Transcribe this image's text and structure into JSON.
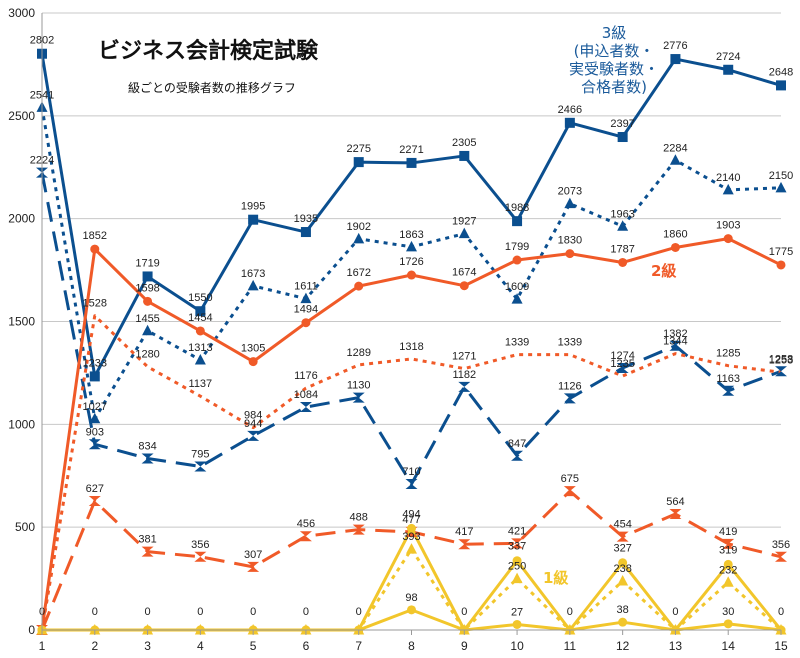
{
  "chart_data": {
    "type": "line",
    "title": "ビジネス会計検定試験",
    "subtitle": "級ごとの受験者数の推移グラフ",
    "x": [
      1,
      2,
      3,
      4,
      5,
      6,
      7,
      8,
      9,
      10,
      11,
      12,
      13,
      14,
      15
    ],
    "xlabel": "",
    "ylabel": "",
    "ylim": [
      0,
      3000
    ],
    "yticks": [
      0,
      500,
      1000,
      1500,
      2000,
      2500,
      3000
    ],
    "grid": "horizontal",
    "annotations": {
      "grade3": [
        "3級",
        "(申込者数・",
        "実受験者数・",
        "合格者数)"
      ],
      "grade2": "2級",
      "grade1": "1級"
    },
    "colors": {
      "blue": "#0b4f8f",
      "orange": "#f05a28",
      "yellow": "#f2c62b"
    },
    "series": [
      {
        "name": "3級 申込者数",
        "values": [
          2802,
          1233,
          1719,
          1550,
          1995,
          1935,
          2275,
          2271,
          2305,
          1988,
          2466,
          2397,
          2776,
          2724,
          2648
        ]
      },
      {
        "name": "3級 実受験者数",
        "values": [
          2541,
          1027,
          1455,
          1313,
          1673,
          1611,
          1902,
          1863,
          1927,
          1609,
          2073,
          1963,
          2284,
          2140,
          2150
        ]
      },
      {
        "name": "3級 合格者数",
        "values": [
          2224,
          903,
          834,
          795,
          944,
          1084,
          1130,
          710,
          1182,
          847,
          1126,
          1274,
          1382,
          1163,
          1258
        ]
      },
      {
        "name": "2級 申込者数",
        "values": [
          0,
          1852,
          1598,
          1454,
          1305,
          1494,
          1672,
          1726,
          1674,
          1799,
          1830,
          1787,
          1860,
          1903,
          1775
        ]
      },
      {
        "name": "2級 実受験者数",
        "values": [
          0,
          1528,
          1280,
          1137,
          984,
          1176,
          1289,
          1318,
          1271,
          1339,
          1339,
          1235,
          1344,
          1285,
          1253
        ]
      },
      {
        "name": "2級 合格者数",
        "values": [
          0,
          627,
          381,
          356,
          307,
          456,
          488,
          477,
          417,
          421,
          675,
          454,
          564,
          419,
          356
        ]
      },
      {
        "name": "1級 申込者数",
        "values": [
          0,
          0,
          0,
          0,
          0,
          0,
          0,
          494,
          0,
          337,
          0,
          327,
          0,
          319,
          0
        ]
      },
      {
        "name": "1級 実受験者数",
        "values": [
          0,
          0,
          0,
          0,
          0,
          0,
          0,
          393,
          0,
          250,
          0,
          238,
          0,
          232,
          0
        ]
      },
      {
        "name": "1級 合格者数",
        "values": [
          0,
          0,
          0,
          0,
          0,
          0,
          0,
          98,
          0,
          27,
          0,
          38,
          0,
          30,
          0
        ]
      }
    ]
  }
}
